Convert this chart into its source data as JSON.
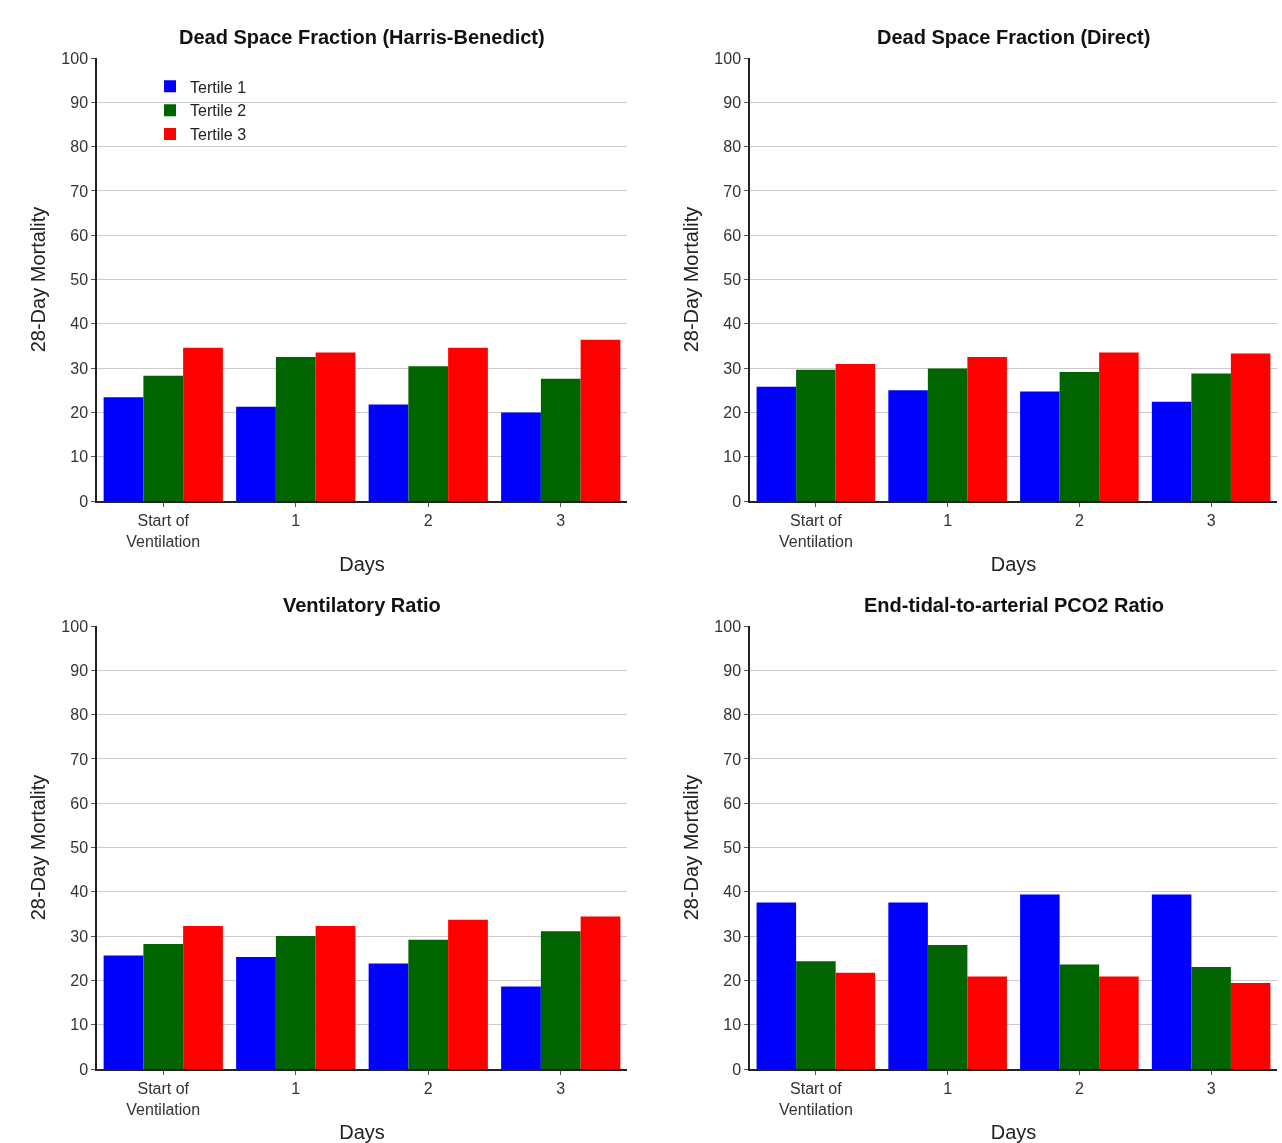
{
  "chart_data": [
    {
      "type": "bar",
      "title": "Dead Space Fraction (Harris-Benedict)",
      "xlabel": "Days",
      "ylabel": "28-Day Mortality",
      "categories": [
        "Start of\nVentilation",
        "1",
        "2",
        "3"
      ],
      "ylim": [
        0,
        100
      ],
      "yticks": [
        0,
        10,
        20,
        30,
        40,
        50,
        60,
        70,
        80,
        90,
        100
      ],
      "grid": "y",
      "legend": "top left",
      "series": [
        {
          "name": "Tertile 1",
          "color": "#0000ff",
          "values": [
            23.4,
            21.3,
            21.8,
            20.0
          ]
        },
        {
          "name": "Tertile 2",
          "color": "#006400",
          "values": [
            28.3,
            32.5,
            30.4,
            27.6
          ]
        },
        {
          "name": "Tertile 3",
          "color": "#ff0000",
          "values": [
            34.6,
            33.5,
            34.6,
            36.4
          ]
        }
      ]
    },
    {
      "type": "bar",
      "title": "Dead Space Fraction (Direct)",
      "xlabel": "Days",
      "ylabel": "28-Day Mortality",
      "categories": [
        "Start of\nVentilation",
        "1",
        "2",
        "3"
      ],
      "ylim": [
        0,
        100
      ],
      "yticks": [
        0,
        10,
        20,
        30,
        40,
        50,
        60,
        70,
        80,
        90,
        100
      ],
      "grid": "y",
      "series": [
        {
          "color": "#0000ff",
          "values": [
            25.8,
            25.0,
            24.7,
            22.4
          ]
        },
        {
          "color": "#006400",
          "values": [
            29.6,
            29.9,
            29.1,
            28.8
          ]
        },
        {
          "color": "#ff0000",
          "values": [
            30.9,
            32.5,
            33.5,
            33.3
          ]
        }
      ]
    },
    {
      "type": "bar",
      "title": "Ventilatory Ratio",
      "xlabel": "Days",
      "ylabel": "28-Day Mortality",
      "categories": [
        "Start of\nVentilation",
        "1",
        "2",
        "3"
      ],
      "ylim": [
        0,
        100
      ],
      "yticks": [
        0,
        10,
        20,
        30,
        40,
        50,
        60,
        70,
        80,
        90,
        100
      ],
      "grid": "y",
      "series": [
        {
          "color": "#0000ff",
          "values": [
            25.6,
            25.3,
            23.8,
            18.6
          ]
        },
        {
          "color": "#006400",
          "values": [
            28.2,
            30.0,
            29.2,
            31.1
          ]
        },
        {
          "color": "#ff0000",
          "values": [
            32.3,
            32.3,
            33.7,
            34.4
          ]
        }
      ]
    },
    {
      "type": "bar",
      "title": "End-tidal-to-arterial PCO2 Ratio",
      "xlabel": "Days",
      "ylabel": "28-Day Mortality",
      "categories": [
        "Start of\nVentilation",
        "1",
        "2",
        "3"
      ],
      "ylim": [
        0,
        100
      ],
      "yticks": [
        0,
        10,
        20,
        30,
        40,
        50,
        60,
        70,
        80,
        90,
        100
      ],
      "grid": "y",
      "series": [
        {
          "color": "#0000ff",
          "values": [
            37.6,
            37.6,
            39.4,
            39.4
          ]
        },
        {
          "color": "#006400",
          "values": [
            24.3,
            28.0,
            23.6,
            23.0
          ]
        },
        {
          "color": "#ff0000",
          "values": [
            21.7,
            20.9,
            20.9,
            19.4
          ]
        }
      ]
    }
  ]
}
